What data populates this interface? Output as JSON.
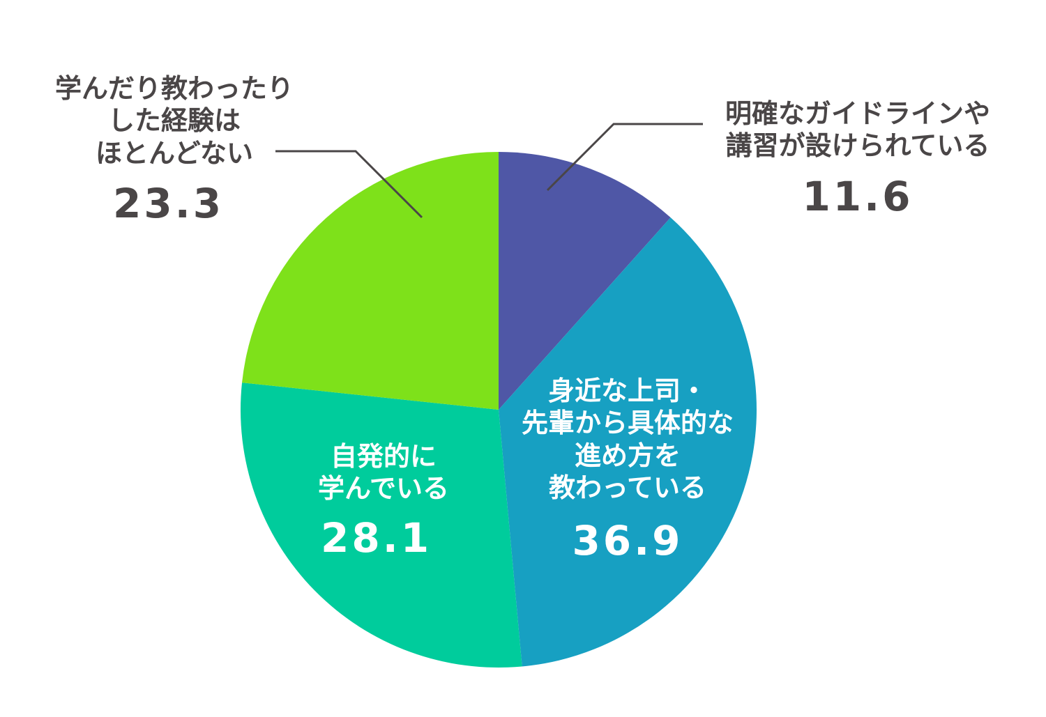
{
  "chart_data": {
    "type": "pie",
    "title": "",
    "start_angle_deg": 0,
    "direction": "clockwise",
    "unit": "%",
    "categories": [
      "明確なガイドラインや講習が設けられている",
      "身近な上司・先輩から具体的な進め方を教わっている",
      "自発的に学んでいる",
      "学んだり教わったりした経験はほとんどない"
    ],
    "values": [
      11.6,
      36.9,
      28.1,
      23.3
    ],
    "colors": [
      "#4f57a6",
      "#17a0c2",
      "#00cc9c",
      "#7ee11a"
    ]
  },
  "slices": [
    {
      "label": "明確なガイドラインや\n講習が設けられている",
      "value_text": "11.6"
    },
    {
      "label": "身近な上司・\n先輩から具体的な\n進め方を\n教わっている",
      "value_text": "36.9"
    },
    {
      "label": "自発的に\n学んでいる",
      "value_text": "28.1"
    },
    {
      "label": "学んだり教わったり\nした経験は\nほとんどない",
      "value_text": "23.3"
    }
  ]
}
